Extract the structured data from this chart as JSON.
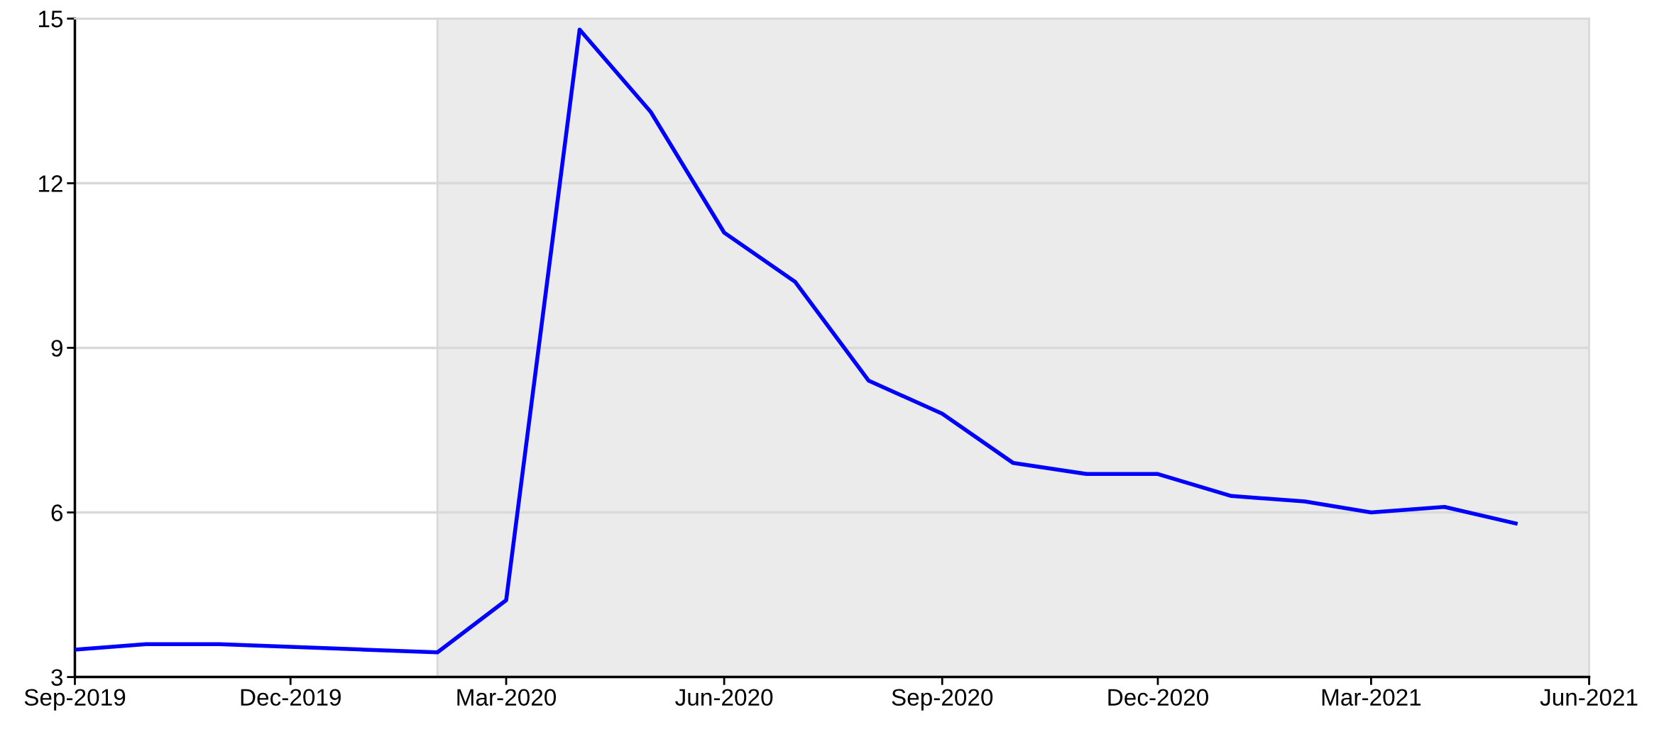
{
  "chart_data": {
    "type": "line",
    "x": [
      "2019-09",
      "2019-10",
      "2019-11",
      "2019-12",
      "2020-01",
      "2020-02",
      "2020-03",
      "2020-04",
      "2020-05",
      "2020-06",
      "2020-07",
      "2020-08",
      "2020-09",
      "2020-10",
      "2020-11",
      "2020-12",
      "2021-01",
      "2021-02",
      "2021-03",
      "2021-04",
      "2021-05"
    ],
    "series": [
      {
        "color": "#0000ff",
        "values": [
          3.5,
          3.6,
          3.6,
          3.55,
          3.5,
          3.45,
          4.4,
          14.8,
          13.3,
          11.1,
          10.2,
          8.4,
          7.8,
          6.9,
          6.7,
          6.7,
          6.3,
          6.2,
          6.0,
          6.1,
          5.8
        ]
      }
    ],
    "xlim": [
      "2019-09",
      "2021-06"
    ],
    "xticks": [
      {
        "value": "2019-09",
        "label": "Sep-2019"
      },
      {
        "value": "2019-12",
        "label": "Dec-2019"
      },
      {
        "value": "2020-03",
        "label": "Mar-2020"
      },
      {
        "value": "2020-06",
        "label": "Jun-2020"
      },
      {
        "value": "2020-09",
        "label": "Sep-2020"
      },
      {
        "value": "2020-12",
        "label": "Dec-2020"
      },
      {
        "value": "2021-03",
        "label": "Mar-2021"
      },
      {
        "value": "2021-06",
        "label": "Jun-2021"
      }
    ],
    "ylim": [
      3,
      15
    ],
    "yticks": [
      3,
      6,
      9,
      12,
      15
    ],
    "bands": [
      {
        "axis": "x",
        "from": "2020-02",
        "to": "2021-06",
        "color": "#ebebeb"
      }
    ],
    "grid": "y",
    "marker": "none",
    "line_style": "solid"
  }
}
